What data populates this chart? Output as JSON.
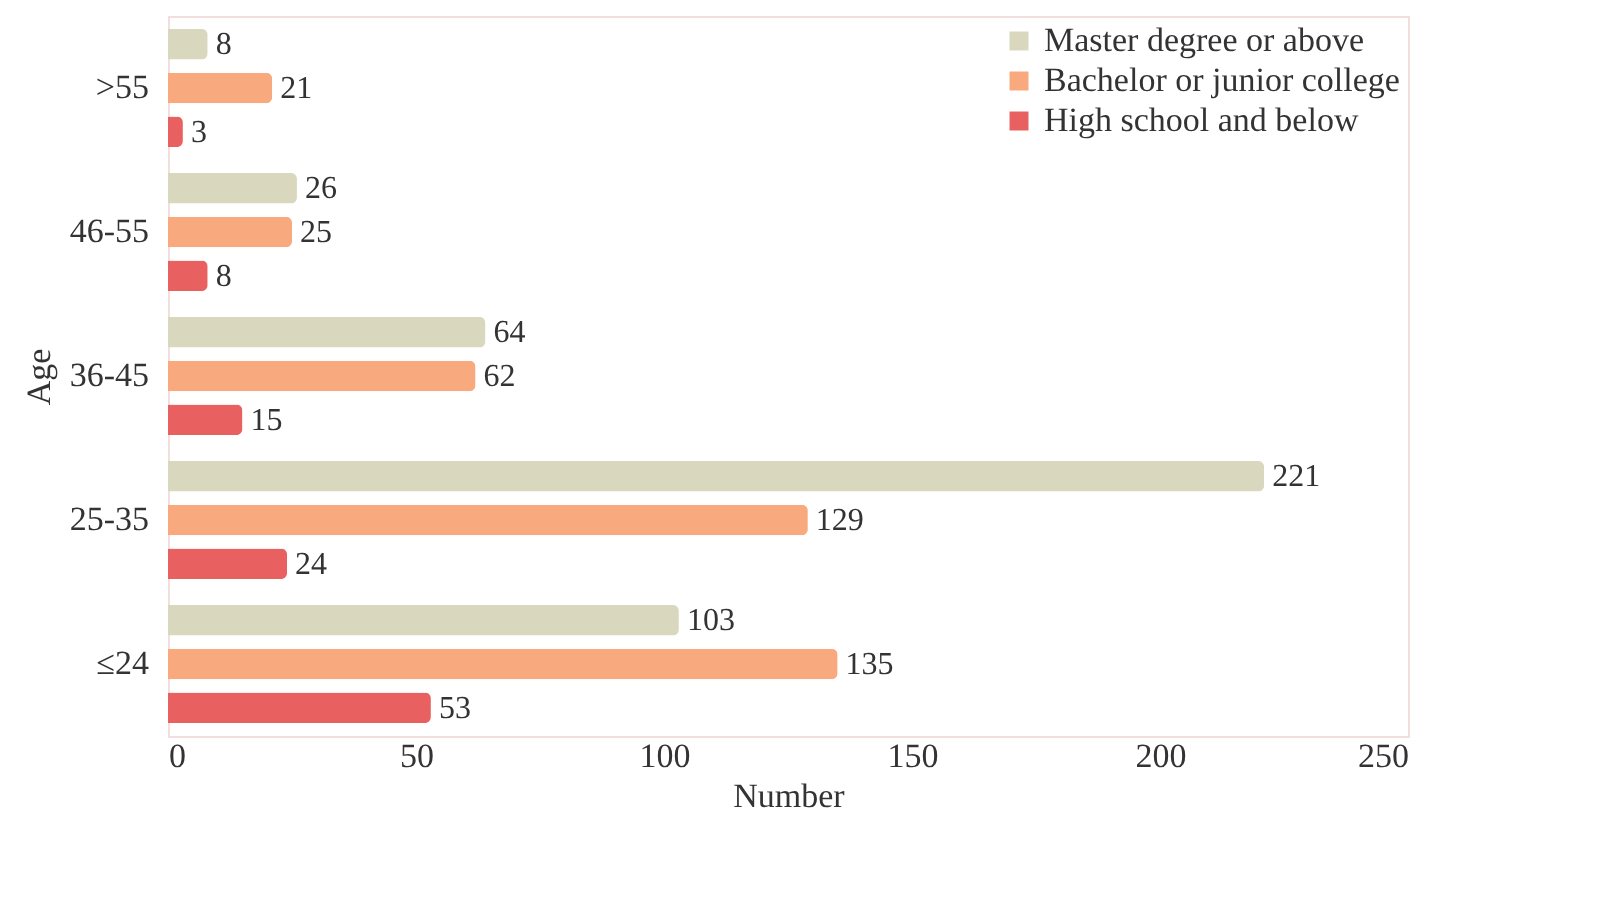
{
  "chart_data": {
    "type": "bar",
    "orientation": "horizontal",
    "xlabel": "Number",
    "ylabel": "Age",
    "categories": [
      ">55",
      "46-55",
      "36-45",
      "25-35",
      "≤24"
    ],
    "series": [
      {
        "name": "Master degree or above",
        "color": "#d9d8bf",
        "values": [
          8,
          26,
          64,
          221,
          103
        ]
      },
      {
        "name": "Bachelor or junior college",
        "color": "#f9a97e",
        "values": [
          21,
          25,
          62,
          129,
          135
        ]
      },
      {
        "name": "High school and below",
        "color": "#e8605f",
        "values": [
          3,
          8,
          15,
          24,
          53
        ]
      }
    ],
    "xlim": [
      0,
      250
    ],
    "xticks": [
      0,
      50,
      100,
      150,
      200,
      250
    ],
    "data_labels": true,
    "legend": "top right",
    "grid": false
  }
}
